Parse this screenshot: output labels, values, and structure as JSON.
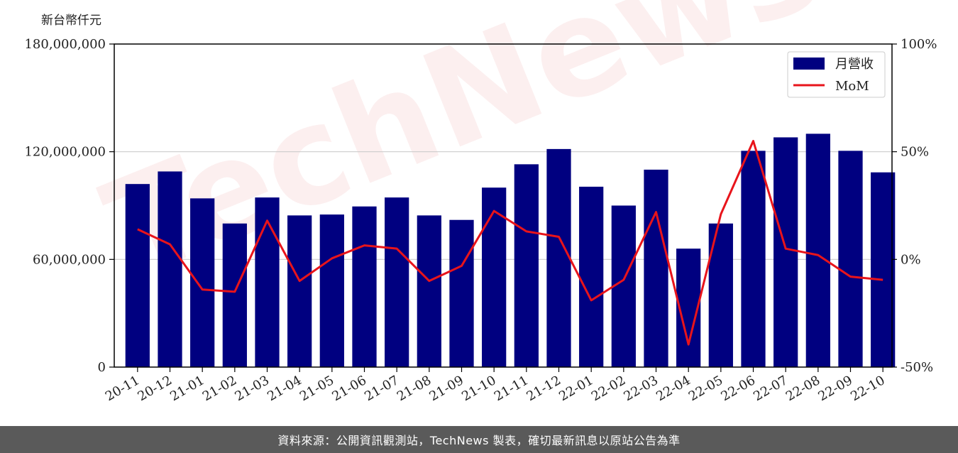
{
  "unit_label": "新台幣仟元",
  "footer_text": "資料來源：公開資訊觀測站，TechNews 製表，確切最新訊息以原站公告為準",
  "watermark_text": "TechNews",
  "colors": {
    "bar": "#000080",
    "line": "#e8141b",
    "grid": "#cccccc"
  },
  "chart_data": {
    "type": "bar",
    "categories": [
      "20-11",
      "20-12",
      "21-01",
      "21-02",
      "21-03",
      "21-04",
      "21-05",
      "21-06",
      "21-07",
      "21-08",
      "21-09",
      "21-10",
      "21-11",
      "21-12",
      "22-01",
      "22-02",
      "22-03",
      "22-04",
      "22-05",
      "22-06",
      "22-07",
      "22-08",
      "22-09",
      "22-10"
    ],
    "series": [
      {
        "name": "月營收",
        "type": "bar",
        "axis": "left",
        "values": [
          102000000,
          109000000,
          94000000,
          80000000,
          94500000,
          84500000,
          85000000,
          89500000,
          94500000,
          84500000,
          82000000,
          100000000,
          113000000,
          121500000,
          100500000,
          90000000,
          110000000,
          66000000,
          80000000,
          120500000,
          128000000,
          130000000,
          120500000,
          108500000
        ]
      },
      {
        "name": "MoM",
        "type": "line",
        "axis": "right",
        "values": [
          14,
          7,
          -14,
          -15,
          18,
          -10,
          0.5,
          6.5,
          5,
          -10,
          -3,
          22.5,
          13,
          10.5,
          -19,
          -9.5,
          22,
          -39.5,
          21,
          55,
          5,
          2,
          -8,
          -9.5
        ]
      }
    ],
    "y_left": {
      "min": 0,
      "max": 180000000,
      "ticks": [
        0,
        60000000,
        120000000,
        180000000
      ],
      "tick_labels": [
        "0",
        "60,000,000",
        "120,000,000",
        "180,000,000"
      ]
    },
    "y_right": {
      "min": -50,
      "max": 100,
      "ticks": [
        -50,
        0,
        50,
        100
      ],
      "tick_labels": [
        "-50%",
        "0%",
        "50%",
        "100%"
      ]
    },
    "grid": "horizontal",
    "legend_position": "top-right"
  }
}
